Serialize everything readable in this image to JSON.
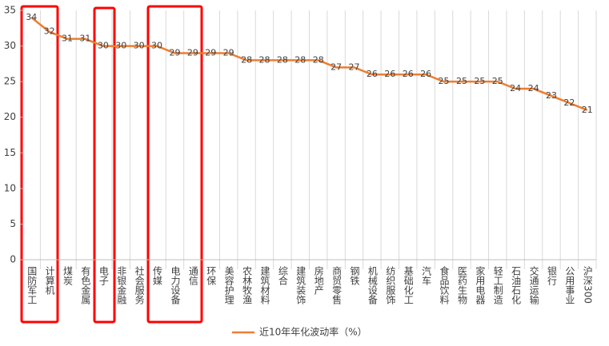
{
  "chart_data": {
    "type": "line",
    "categories": [
      "国防军工",
      "计算机",
      "煤炭",
      "有色金属",
      "电子",
      "非银金融",
      "社会服务",
      "传媒",
      "电力设备",
      "通信",
      "环保",
      "美容护理",
      "农林牧渔",
      "建筑材料",
      "综合",
      "建筑装饰",
      "房地产",
      "商贸零售",
      "钢铁",
      "机械设备",
      "纺织服饰",
      "基础化工",
      "汽车",
      "食品饮料",
      "医药生物",
      "家用电器",
      "轻工制造",
      "石油石化",
      "交通运输",
      "银行",
      "公用事业",
      "沪深300"
    ],
    "series": [
      {
        "name": "近10年年化波动率（%）",
        "color": "#ed7d31",
        "values": [
          34,
          32,
          31,
          31,
          30,
          30,
          30,
          30,
          29,
          29,
          29,
          29,
          28,
          28,
          28,
          28,
          28,
          27,
          27,
          26,
          26,
          26,
          26,
          25,
          25,
          25,
          25,
          24,
          24,
          23,
          22,
          21
        ]
      }
    ],
    "ylim": [
      0,
      35
    ],
    "yticks": [
      0,
      5,
      10,
      15,
      20,
      25,
      30,
      35
    ],
    "legend": "bottom"
  }
}
